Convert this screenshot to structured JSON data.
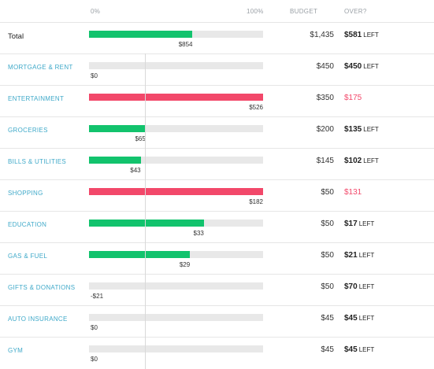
{
  "header": {
    "pct0": "0%",
    "pct100": "100%",
    "budget": "BUDGET",
    "over": "OVER?"
  },
  "colors": {
    "green": "#12c36d",
    "red": "#f2486a",
    "track": "#e8e8e8",
    "label": "#3fa9c9"
  },
  "rows": [
    {
      "label": "Total",
      "spent": "$854",
      "budget": "$1,435",
      "over_amount": "$581",
      "over_suffix": "LEFT",
      "fill_pct": 59.5,
      "status": "green"
    },
    {
      "label": "MORTGAGE & RENT",
      "spent": "$0",
      "budget": "$450",
      "over_amount": "$450",
      "over_suffix": "LEFT",
      "fill_pct": 0,
      "status": "green"
    },
    {
      "label": "ENTERTAINMENT",
      "spent": "$526",
      "budget": "$350",
      "over_amount": "$175",
      "over_suffix": "",
      "fill_pct": 100,
      "status": "red"
    },
    {
      "label": "GROCERIES",
      "spent": "$65",
      "budget": "$200",
      "over_amount": "$135",
      "over_suffix": "LEFT",
      "fill_pct": 32.5,
      "status": "green"
    },
    {
      "label": "BILLS & UTILITIES",
      "spent": "$43",
      "budget": "$145",
      "over_amount": "$102",
      "over_suffix": "LEFT",
      "fill_pct": 29.7,
      "status": "green"
    },
    {
      "label": "SHOPPING",
      "spent": "$182",
      "budget": "$50",
      "over_amount": "$131",
      "over_suffix": "",
      "fill_pct": 100,
      "status": "red"
    },
    {
      "label": "EDUCATION",
      "spent": "$33",
      "budget": "$50",
      "over_amount": "$17",
      "over_suffix": "LEFT",
      "fill_pct": 66,
      "status": "green"
    },
    {
      "label": "GAS & FUEL",
      "spent": "$29",
      "budget": "$50",
      "over_amount": "$21",
      "over_suffix": "LEFT",
      "fill_pct": 58,
      "status": "green"
    },
    {
      "label": "GIFTS & DONATIONS",
      "spent": "-$21",
      "budget": "$50",
      "over_amount": "$70",
      "over_suffix": "LEFT",
      "fill_pct": 0,
      "status": "green"
    },
    {
      "label": "AUTO INSURANCE",
      "spent": "$0",
      "budget": "$45",
      "over_amount": "$45",
      "over_suffix": "LEFT",
      "fill_pct": 0,
      "status": "green"
    },
    {
      "label": "GYM",
      "spent": "$0",
      "budget": "$45",
      "over_amount": "$45",
      "over_suffix": "LEFT",
      "fill_pct": 0,
      "status": "green"
    }
  ]
}
